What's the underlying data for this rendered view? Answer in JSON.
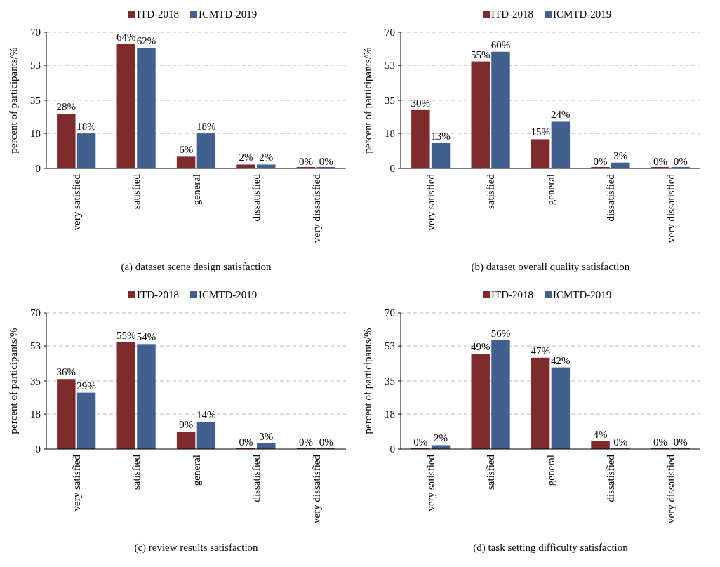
{
  "chart_data": [
    {
      "type": "bar",
      "title": "(a) dataset scene design satisfaction",
      "ylabel": "percent of participants/%",
      "categories": [
        "very satisfied",
        "satisfied",
        "general",
        "dissatisfied",
        "very dissatisfied"
      ],
      "ylim": [
        0,
        70
      ],
      "yticks": [
        0,
        18,
        35,
        53,
        70
      ],
      "grid": "y",
      "legend": "top",
      "series": [
        {
          "name": "ITD-2018",
          "color": "#7f2a2b",
          "values": [
            28,
            64,
            6,
            2,
            0
          ],
          "value_labels": [
            "28%",
            "64%",
            "6%",
            "2%",
            "0%"
          ]
        },
        {
          "name": "ICMTD-2019",
          "color": "#41608f",
          "values": [
            18,
            62,
            18,
            2,
            0
          ],
          "value_labels": [
            "18%",
            "62%",
            "18%",
            "2%",
            "0%"
          ]
        }
      ]
    },
    {
      "type": "bar",
      "title": "(b) dataset overall quality satisfaction",
      "ylabel": "percent of participants/%",
      "categories": [
        "very satisfied",
        "satisfied",
        "general",
        "dissatisfied",
        "very dissatisfied"
      ],
      "ylim": [
        0,
        70
      ],
      "yticks": [
        0,
        18,
        35,
        53,
        70
      ],
      "grid": "y",
      "legend": "top",
      "series": [
        {
          "name": "ITD-2018",
          "color": "#7f2a2b",
          "values": [
            30,
            55,
            15,
            0,
            0
          ],
          "value_labels": [
            "30%",
            "55%",
            "15%",
            "0%",
            "0%"
          ]
        },
        {
          "name": "ICMTD-2019",
          "color": "#41608f",
          "values": [
            13,
            60,
            24,
            3,
            0
          ],
          "value_labels": [
            "13%",
            "60%",
            "24%",
            "3%",
            "0%"
          ]
        }
      ]
    },
    {
      "type": "bar",
      "title": "(c) review results satisfaction",
      "ylabel": "percent of participants/%",
      "categories": [
        "very satisfied",
        "satisfied",
        "general",
        "dissatisfied",
        "very dissatisfied"
      ],
      "ylim": [
        0,
        70
      ],
      "yticks": [
        0,
        18,
        35,
        53,
        70
      ],
      "grid": "y",
      "legend": "top",
      "series": [
        {
          "name": "ITD-2018",
          "color": "#7f2a2b",
          "values": [
            36,
            55,
            9,
            0,
            0
          ],
          "value_labels": [
            "36%",
            "55%",
            "9%",
            "0%",
            "0%"
          ]
        },
        {
          "name": "ICMTD-2019",
          "color": "#41608f",
          "values": [
            29,
            54,
            14,
            3,
            0
          ],
          "value_labels": [
            "29%",
            "54%",
            "14%",
            "3%",
            "0%"
          ]
        }
      ]
    },
    {
      "type": "bar",
      "title": "(d) task setting difficulty satisfaction",
      "ylabel": "percent of participants/%",
      "categories": [
        "very satisfied",
        "satisfied",
        "general",
        "dissatisfied",
        "very dissatisfied"
      ],
      "ylim": [
        0,
        70
      ],
      "yticks": [
        0,
        18,
        35,
        53,
        70
      ],
      "grid": "y",
      "legend": "top",
      "series": [
        {
          "name": "ITD-2018",
          "color": "#7f2a2b",
          "values": [
            0,
            49,
            47,
            4,
            0
          ],
          "value_labels": [
            "0%",
            "49%",
            "47%",
            "4%",
            "0%"
          ]
        },
        {
          "name": "ICMTD-2019",
          "color": "#41608f",
          "values": [
            2,
            56,
            42,
            0,
            0
          ],
          "value_labels": [
            "2%",
            "56%",
            "42%",
            "0%",
            "0%"
          ]
        }
      ]
    }
  ]
}
